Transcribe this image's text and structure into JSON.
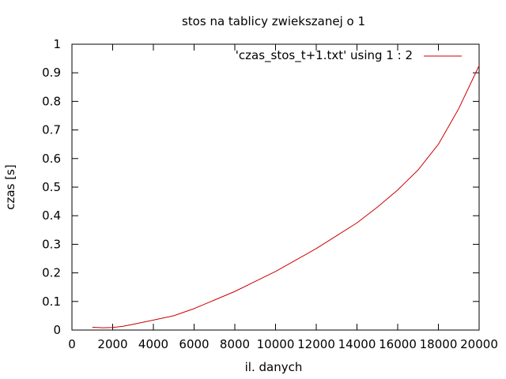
{
  "chart_data": {
    "type": "line",
    "title": "stos na tablicy zwiekszanej o 1",
    "xlabel": "il. danych",
    "ylabel": "czas [s]",
    "xlim": [
      0,
      20000
    ],
    "ylim": [
      0,
      1
    ],
    "xticks": [
      0,
      2000,
      4000,
      6000,
      8000,
      10000,
      12000,
      14000,
      16000,
      18000,
      20000
    ],
    "yticks": [
      0,
      0.1,
      0.2,
      0.3,
      0.4,
      0.5,
      0.6,
      0.7,
      0.8,
      0.9,
      1
    ],
    "grid": false,
    "legend_position": "top-right",
    "series": [
      {
        "name": "'czas_stos_t+1.txt' using 1 : 2",
        "color": "#cc0000",
        "x": [
          1000,
          1500,
          2000,
          2500,
          3000,
          4000,
          5000,
          6000,
          7000,
          8000,
          9000,
          10000,
          11000,
          12000,
          13000,
          14000,
          15000,
          16000,
          17000,
          18000,
          19000,
          20000
        ],
        "y": [
          0.01,
          0.008,
          0.009,
          0.013,
          0.02,
          0.035,
          0.05,
          0.075,
          0.105,
          0.135,
          0.17,
          0.205,
          0.245,
          0.285,
          0.33,
          0.375,
          0.43,
          0.49,
          0.56,
          0.65,
          0.775,
          0.925
        ]
      }
    ]
  }
}
